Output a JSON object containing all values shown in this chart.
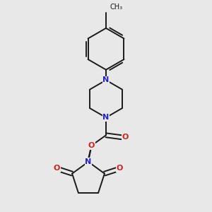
{
  "background_color": "#e8e8e8",
  "bond_color": "#1a1a1a",
  "N_color": "#2222cc",
  "O_color": "#cc2222",
  "font_size_N": 8,
  "font_size_O": 8,
  "font_size_CH3": 7,
  "line_width": 1.4,
  "figsize": [
    3.0,
    3.0
  ],
  "dpi": 100,
  "xlim": [
    0,
    10
  ],
  "ylim": [
    0,
    10
  ]
}
